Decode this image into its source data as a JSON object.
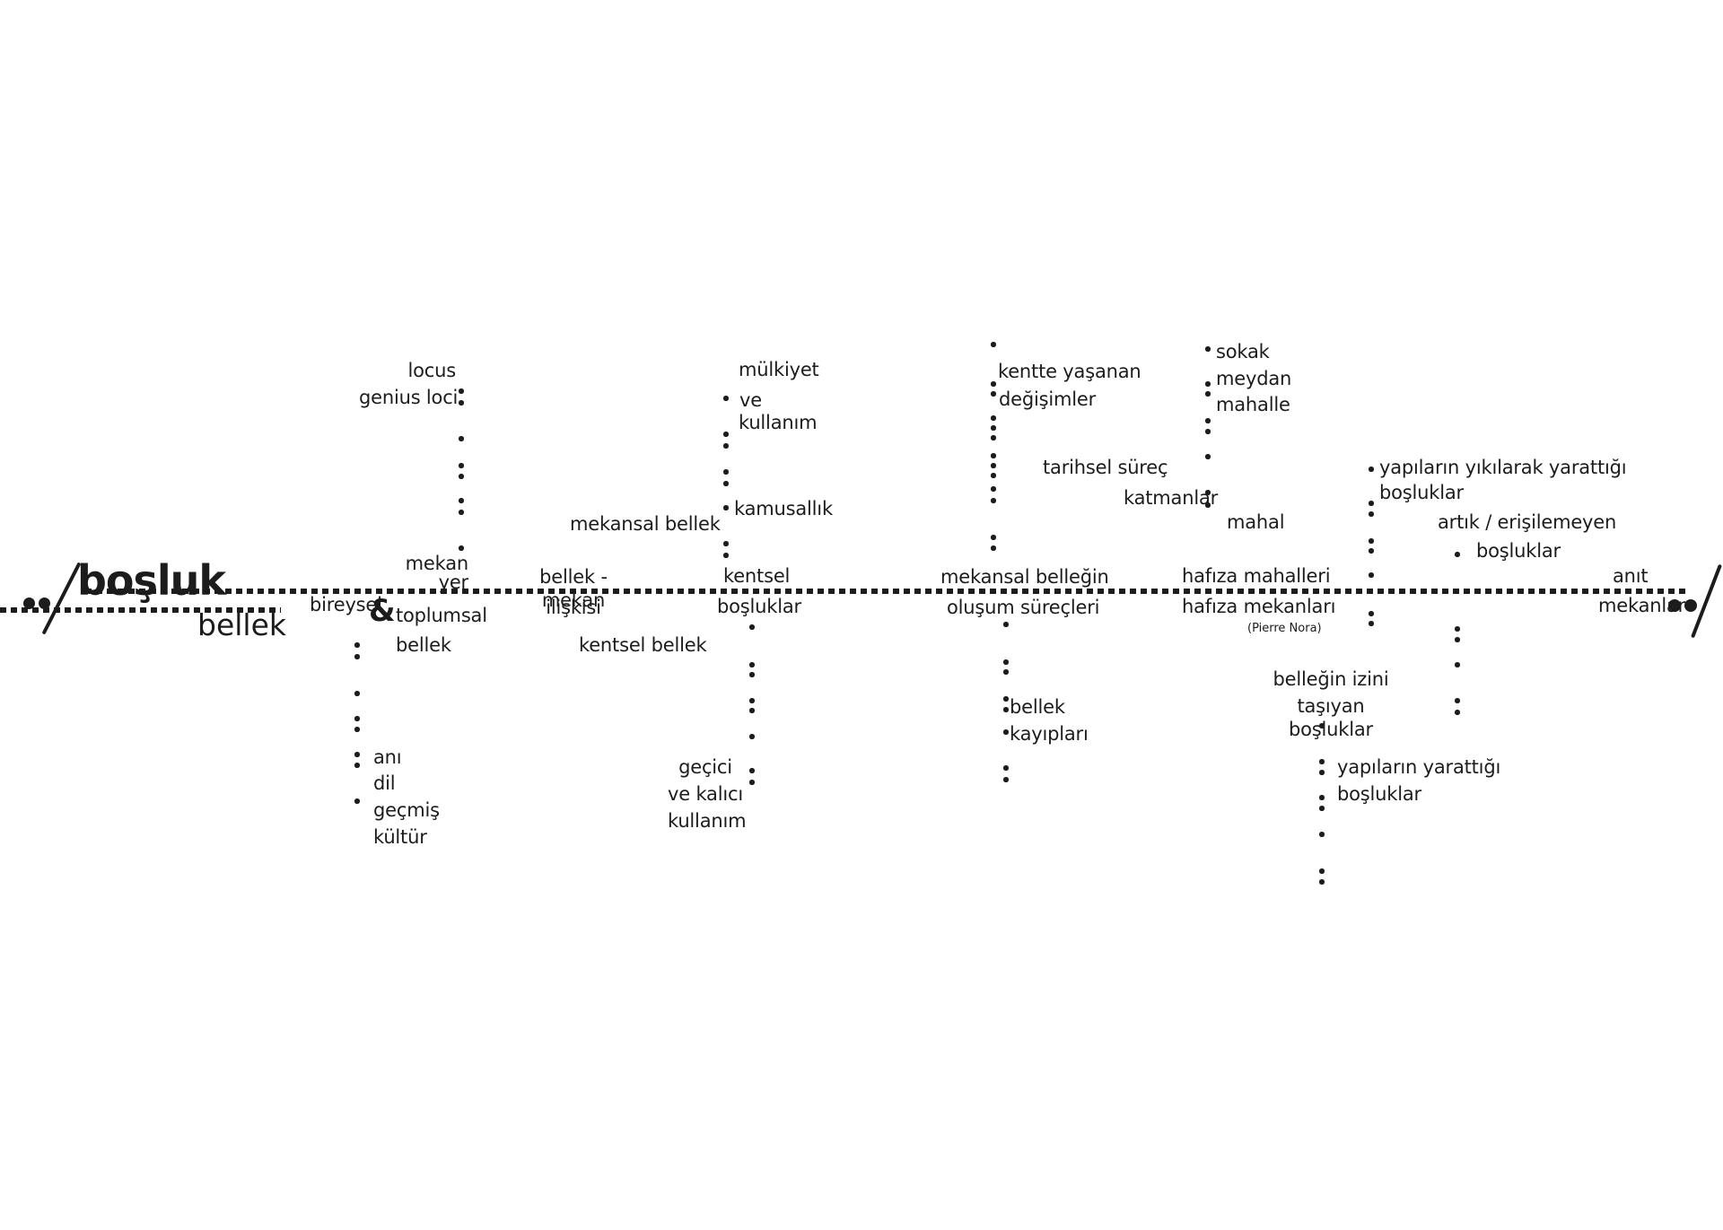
{
  "colors": {
    "ink": "#1c1c1c",
    "background": "#ffffff"
  },
  "title": {
    "top_word": "boşluk",
    "bottom_word": "bellek"
  },
  "nodes": {
    "locus": {
      "l1": "locus",
      "l2": "genius loci"
    },
    "mekan_yer": {
      "l1": "mekan",
      "l2": "yer"
    },
    "bireysel": {
      "w1": "bireysel",
      "amp": "&",
      "w2": "toplumsal",
      "l2": "bellek"
    },
    "list_left": {
      "i1": "anı",
      "i2": "dil",
      "i3": "geçmiş",
      "i4": "kültür"
    },
    "mekansal_bellek": {
      "l1": "mekansal bellek"
    },
    "bellek_mekan": {
      "above": "bellek - mekan",
      "below": "ilişkisi"
    },
    "kentsel_bellek": {
      "l1": "kentsel bellek"
    },
    "mulkiyet": {
      "l1": "mülkiyet",
      "l2": "ve",
      "l3": "kullanım"
    },
    "kamusallik": {
      "l1": "kamusallık"
    },
    "kentsel_bosluklar": {
      "above": "kentsel",
      "below": "boşluklar"
    },
    "gecici": {
      "l1": "geçici",
      "l2": "ve kalıcı",
      "l3": "kullanım"
    },
    "kentte": {
      "l1": "kentte yaşanan",
      "l2": "değişimler"
    },
    "tarihsel": {
      "l1": "tarihsel süreç"
    },
    "katmanlar": {
      "l1": "katmanlar"
    },
    "sokak_list": {
      "i1": "sokak",
      "i2": "meydan",
      "i3": "mahalle"
    },
    "mahal": {
      "l1": "mahal"
    },
    "mekansal_bellegin": {
      "above": "mekansal belleğin",
      "below": "oluşum süreçleri"
    },
    "bellek_kayiplari": {
      "i1": "bellek",
      "i2": "kayıpları"
    },
    "hafiza": {
      "above": "hafıza mahalleri",
      "below": "hafıza mekanları",
      "attribution": "(Pierre Nora)"
    },
    "bellegin_izini": {
      "l1": "belleğin izini",
      "l2": "taşıyan boşluklar"
    },
    "yapilarin_yarattigi": {
      "l1": "yapıların yarattığı",
      "l2": "boşluklar"
    },
    "yikilarak": {
      "l1": "yapıların yıkılarak yarattığı",
      "l2": "boşluklar"
    },
    "artik": {
      "l1": "artık / erişilemeyen",
      "l2": "boşluklar"
    },
    "anit": {
      "above": "anıt",
      "below": "mekanlar"
    }
  }
}
